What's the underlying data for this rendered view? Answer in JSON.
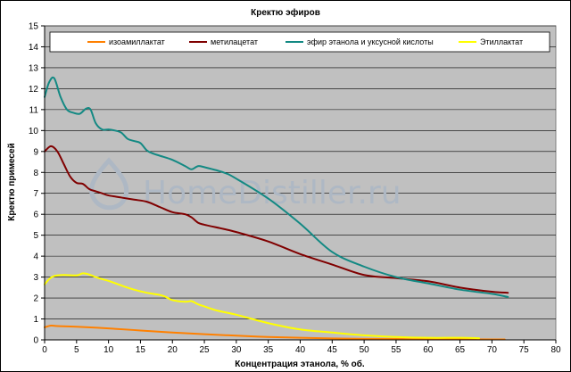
{
  "chart_data": {
    "type": "line",
    "title": "Кректю эфиров",
    "xlabel": "Концентрация этанола, % об.",
    "ylabel": "Кректю примесей",
    "xlim": [
      0,
      80
    ],
    "ylim": [
      0,
      15
    ],
    "xticks": [
      0,
      5,
      10,
      15,
      20,
      25,
      30,
      35,
      40,
      45,
      50,
      55,
      60,
      65,
      70,
      75,
      80
    ],
    "yticks": [
      0,
      1,
      2,
      3,
      4,
      5,
      6,
      7,
      8,
      9,
      10,
      11,
      12,
      13,
      14,
      15
    ],
    "grid": true,
    "legend_position": "top",
    "plot_background": "#c0c0c0",
    "series": [
      {
        "name": "изоамиллактат",
        "color": "#ff8000",
        "x": [
          0,
          1,
          2,
          5,
          10,
          15,
          20,
          25,
          30,
          35,
          40,
          45,
          50,
          55,
          60,
          65,
          70,
          72
        ],
        "y": [
          0.6,
          0.68,
          0.66,
          0.63,
          0.55,
          0.45,
          0.35,
          0.27,
          0.2,
          0.14,
          0.1,
          0.07,
          0.05,
          0.04,
          0.03,
          0.03,
          0.02,
          0.02
        ]
      },
      {
        "name": "метилацетат",
        "color": "#800000",
        "x": [
          0,
          1,
          2,
          3,
          4,
          5,
          6,
          7,
          8,
          9,
          10,
          12,
          14,
          16,
          18,
          20,
          22,
          23,
          24,
          25,
          28,
          30,
          35,
          40,
          45,
          50,
          55,
          60,
          65,
          70,
          72.5
        ],
        "y": [
          9.0,
          9.25,
          9.0,
          8.4,
          7.8,
          7.5,
          7.45,
          7.2,
          7.1,
          7.0,
          6.9,
          6.8,
          6.7,
          6.6,
          6.35,
          6.1,
          6.0,
          5.85,
          5.6,
          5.5,
          5.3,
          5.15,
          4.7,
          4.1,
          3.6,
          3.1,
          2.95,
          2.8,
          2.5,
          2.3,
          2.25
        ]
      },
      {
        "name": "эфир этанола и уксусной кислоты",
        "color": "#138983",
        "x": [
          0,
          0.7,
          1.5,
          2.5,
          3.5,
          4.5,
          5.5,
          6.5,
          7.2,
          8,
          9,
          10,
          11,
          12,
          13,
          14,
          15,
          16,
          17,
          18,
          20,
          22,
          23,
          24,
          25,
          28,
          30,
          35,
          40,
          45,
          50,
          55,
          60,
          65,
          70,
          72.5
        ],
        "y": [
          11.6,
          12.3,
          12.5,
          11.6,
          11.0,
          10.85,
          10.8,
          11.05,
          11.0,
          10.35,
          10.05,
          10.05,
          10.0,
          9.9,
          9.6,
          9.5,
          9.4,
          9.05,
          8.9,
          8.8,
          8.6,
          8.3,
          8.15,
          8.3,
          8.25,
          8.0,
          7.7,
          6.75,
          5.55,
          4.2,
          3.5,
          3.0,
          2.7,
          2.4,
          2.2,
          2.05
        ]
      },
      {
        "name": "Этиллактат",
        "color": "#ffff00",
        "x": [
          0,
          0.7,
          1.5,
          3,
          5,
          6,
          7,
          8,
          9,
          10,
          12,
          14,
          16,
          18,
          19,
          20,
          22,
          23,
          24,
          25,
          27,
          30,
          35,
          40,
          45,
          50,
          55,
          60,
          65,
          68
        ],
        "y": [
          2.65,
          2.9,
          3.05,
          3.1,
          3.08,
          3.18,
          3.12,
          3.0,
          2.9,
          2.82,
          2.6,
          2.4,
          2.25,
          2.15,
          2.05,
          1.9,
          1.82,
          1.85,
          1.7,
          1.6,
          1.4,
          1.2,
          0.8,
          0.5,
          0.35,
          0.22,
          0.14,
          0.1,
          0.1,
          0.08
        ]
      }
    ]
  },
  "watermark": {
    "text": "HomeDistiller.ru",
    "color": "#aeb8c4"
  }
}
